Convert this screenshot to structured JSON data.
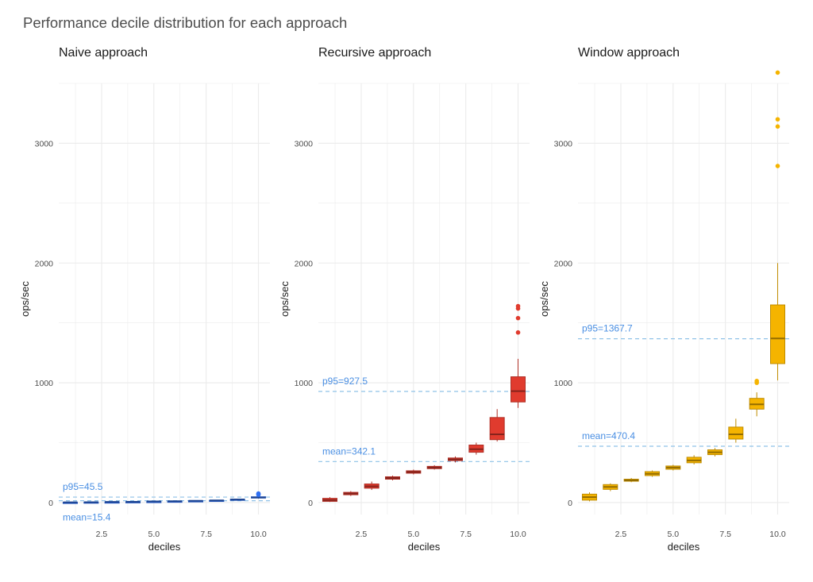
{
  "title": "Performance decile distribution for each approach",
  "chart_data": [
    {
      "type": "box",
      "panel_title": "Naive approach",
      "color": "#2f6ff2",
      "xlabel": "deciles",
      "ylabel": "ops/sec",
      "xlim": [
        0.45,
        10.55
      ],
      "ylim": [
        -100,
        3500
      ],
      "x_ticks": [
        "2.5",
        "5.0",
        "7.5",
        "10.0"
      ],
      "y_ticks": [
        "0",
        "1000",
        "2000",
        "3000"
      ],
      "boxes": [
        {
          "x": 1,
          "min": 1,
          "q1": 1,
          "median": 2,
          "q3": 2,
          "max": 3,
          "outliers": []
        },
        {
          "x": 2,
          "min": 2,
          "q1": 3,
          "median": 3,
          "q3": 4,
          "max": 5,
          "outliers": []
        },
        {
          "x": 3,
          "min": 4,
          "q1": 4,
          "median": 5,
          "q3": 5,
          "max": 6,
          "outliers": []
        },
        {
          "x": 4,
          "min": 5,
          "q1": 6,
          "median": 6,
          "q3": 7,
          "max": 8,
          "outliers": []
        },
        {
          "x": 5,
          "min": 7,
          "q1": 8,
          "median": 9,
          "q3": 9,
          "max": 10,
          "outliers": []
        },
        {
          "x": 6,
          "min": 9,
          "q1": 10,
          "median": 11,
          "q3": 12,
          "max": 13,
          "outliers": []
        },
        {
          "x": 7,
          "min": 12,
          "q1": 13,
          "median": 14,
          "q3": 15,
          "max": 16,
          "outliers": []
        },
        {
          "x": 8,
          "min": 15,
          "q1": 17,
          "median": 18,
          "q3": 19,
          "max": 21,
          "outliers": []
        },
        {
          "x": 9,
          "min": 20,
          "q1": 23,
          "median": 25,
          "q3": 28,
          "max": 32,
          "outliers": []
        },
        {
          "x": 10,
          "min": 33,
          "q1": 38,
          "median": 42,
          "q3": 48,
          "max": 58,
          "outliers": [
            65,
            70,
            75
          ]
        }
      ],
      "reference_lines": [
        {
          "label": "p95=45.5",
          "value": 45.5,
          "label_side": "above"
        },
        {
          "label": "mean=15.4",
          "value": 15.4,
          "label_side": "below"
        }
      ]
    },
    {
      "type": "box",
      "panel_title": "Recursive approach",
      "color": "#e03b2e",
      "xlabel": "deciles",
      "ylabel": "ops/sec",
      "xlim": [
        0.45,
        10.55
      ],
      "ylim": [
        -100,
        3500
      ],
      "x_ticks": [
        "2.5",
        "5.0",
        "7.5",
        "10.0"
      ],
      "y_ticks": [
        "0",
        "1000",
        "2000",
        "3000"
      ],
      "boxes": [
        {
          "x": 1,
          "min": 5,
          "q1": 10,
          "median": 20,
          "q3": 35,
          "max": 45,
          "outliers": []
        },
        {
          "x": 2,
          "min": 55,
          "q1": 65,
          "median": 75,
          "q3": 85,
          "max": 95,
          "outliers": []
        },
        {
          "x": 3,
          "min": 105,
          "q1": 120,
          "median": 135,
          "q3": 155,
          "max": 175,
          "outliers": []
        },
        {
          "x": 4,
          "min": 185,
          "q1": 195,
          "median": 205,
          "q3": 215,
          "max": 225,
          "outliers": []
        },
        {
          "x": 5,
          "min": 235,
          "q1": 245,
          "median": 255,
          "q3": 265,
          "max": 275,
          "outliers": []
        },
        {
          "x": 6,
          "min": 275,
          "q1": 283,
          "median": 292,
          "q3": 302,
          "max": 312,
          "outliers": []
        },
        {
          "x": 7,
          "min": 335,
          "q1": 350,
          "median": 360,
          "q3": 372,
          "max": 385,
          "outliers": []
        },
        {
          "x": 8,
          "min": 400,
          "q1": 420,
          "median": 445,
          "q3": 480,
          "max": 500,
          "outliers": []
        },
        {
          "x": 9,
          "min": 510,
          "q1": 525,
          "median": 570,
          "q3": 710,
          "max": 780,
          "outliers": []
        },
        {
          "x": 10,
          "min": 790,
          "q1": 840,
          "median": 930,
          "q3": 1050,
          "max": 1200,
          "outliers": [
            1420,
            1540,
            1620,
            1640
          ]
        }
      ],
      "reference_lines": [
        {
          "label": "p95=927.5",
          "value": 927.5,
          "label_side": "above"
        },
        {
          "label": "mean=342.1",
          "value": 342.1,
          "label_side": "above"
        }
      ]
    },
    {
      "type": "box",
      "panel_title": "Window approach",
      "color": "#f5b400",
      "xlabel": "deciles",
      "ylabel": "ops/sec",
      "xlim": [
        0.45,
        10.55
      ],
      "ylim": [
        -100,
        3500
      ],
      "x_ticks": [
        "2.5",
        "5.0",
        "7.5",
        "10.0"
      ],
      "y_ticks": [
        "0",
        "1000",
        "2000",
        "3000"
      ],
      "boxes": [
        {
          "x": 1,
          "min": 10,
          "q1": 20,
          "median": 45,
          "q3": 70,
          "max": 85,
          "outliers": []
        },
        {
          "x": 2,
          "min": 95,
          "q1": 110,
          "median": 130,
          "q3": 150,
          "max": 160,
          "outliers": []
        },
        {
          "x": 3,
          "min": 170,
          "q1": 178,
          "median": 185,
          "q3": 195,
          "max": 205,
          "outliers": []
        },
        {
          "x": 4,
          "min": 215,
          "q1": 225,
          "median": 240,
          "q3": 258,
          "max": 268,
          "outliers": []
        },
        {
          "x": 5,
          "min": 268,
          "q1": 278,
          "median": 292,
          "q3": 305,
          "max": 315,
          "outliers": []
        },
        {
          "x": 6,
          "min": 318,
          "q1": 332,
          "median": 352,
          "q3": 378,
          "max": 395,
          "outliers": []
        },
        {
          "x": 7,
          "min": 385,
          "q1": 400,
          "median": 420,
          "q3": 440,
          "max": 455,
          "outliers": []
        },
        {
          "x": 8,
          "min": 500,
          "q1": 530,
          "median": 570,
          "q3": 630,
          "max": 700,
          "outliers": []
        },
        {
          "x": 9,
          "min": 720,
          "q1": 780,
          "median": 820,
          "q3": 870,
          "max": 920,
          "outliers": [
            1000,
            1015
          ]
        },
        {
          "x": 10,
          "min": 1020,
          "q1": 1160,
          "median": 1370,
          "q3": 1650,
          "max": 2000,
          "outliers": [
            2810,
            3140,
            3200,
            3590
          ]
        }
      ],
      "reference_lines": [
        {
          "label": "p95=1367.7",
          "value": 1367.7,
          "label_side": "above"
        },
        {
          "label": "mean=470.4",
          "value": 470.4,
          "label_side": "above"
        }
      ]
    }
  ],
  "colors": {
    "grid": "#ebebeb",
    "reference_line": "#8fc2e8",
    "annotation_text": "#4a8fe3"
  }
}
